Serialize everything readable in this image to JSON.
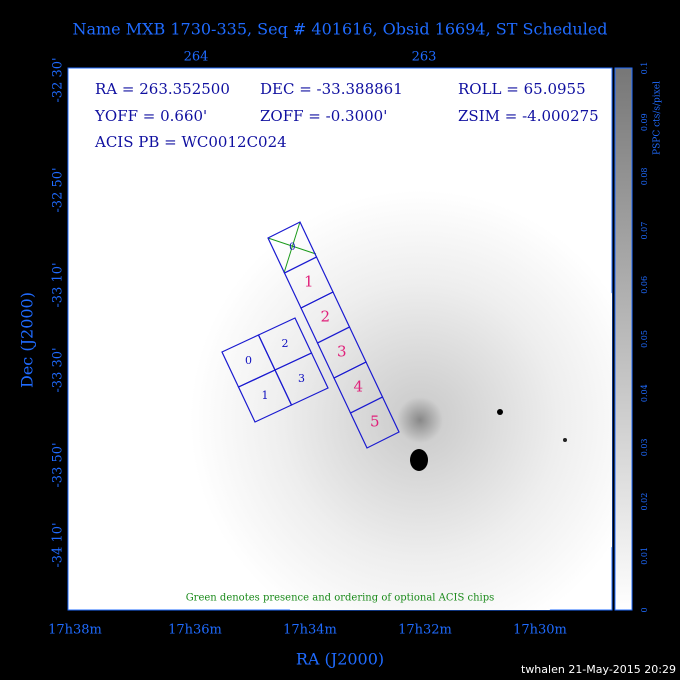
{
  "header": {
    "title": "Name MXB 1730-335, Seq # 401616, Obsid 16694, ST Scheduled"
  },
  "info": [
    "RA = 263.352500",
    "DEC = -33.388861",
    "ROLL = 65.0955",
    "YOFF =   0.660'",
    "ZOFF = -0.3000'",
    "ZSIM = -4.000275",
    "ACIS PB = WC0012C024"
  ],
  "axes": {
    "top_ticks": [
      "264",
      "263"
    ],
    "left_ticks": [
      "-32 30'",
      "-32 50'",
      "-33 10'",
      "-33 30'",
      "-33 50'",
      "-34 10'"
    ],
    "bottom_ticks": [
      "17h38m",
      "17h36m",
      "17h34m",
      "17h32m",
      "17h30m"
    ],
    "x_label": "RA (J2000)",
    "y_label": "Dec (J2000)"
  },
  "colorbar": {
    "ticks": [
      "0.1",
      "0.09",
      "0.08",
      "0.07",
      "0.06",
      "0.05",
      "0.04",
      "0.03",
      "0.02",
      "0.01",
      "0"
    ],
    "label": "PSPC cts/s/pixel"
  },
  "chips": {
    "s_array": [
      "0",
      "1",
      "2",
      "3",
      "4",
      "5"
    ],
    "i_array": [
      "0",
      "2",
      "1",
      "3"
    ]
  },
  "note": "Green denotes presence and ordering of optional ACIS chips",
  "footer": "twhalen 21-May-2015 20:29"
}
